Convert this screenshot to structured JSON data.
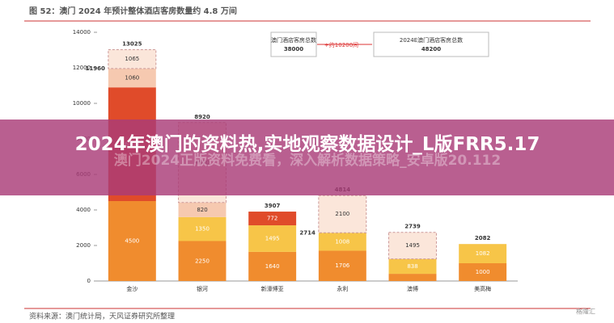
{
  "chart_data": {
    "type": "stacked_bar",
    "title": "图 52：澳门 2024 年预计整体酒店客房数量约 4.8 万间",
    "source": "资料来源：澳门统计局，天风证券研究所整理",
    "watermark": "格隆汇",
    "ylim": [
      0,
      14000
    ],
    "yticks": [
      0,
      2000,
      4000,
      6000,
      8000,
      10000,
      12000,
      14000
    ],
    "boxes": [
      {
        "label": "澳门酒店客房总数",
        "value": 38000
      },
      {
        "label": "+约10200间"
      },
      {
        "label": "2024E澳门酒店客房总数",
        "value": 48200
      }
    ],
    "bars": [
      {
        "category": "金沙",
        "sub_total": 11960,
        "total": 13025,
        "segments": [
          {
            "value": 4500,
            "color": "#f08c2e"
          },
          {
            "value": 6400,
            "color": "#e04b2a"
          },
          {
            "value": 1060,
            "color": "#f6c9b0"
          },
          {
            "value": 1065,
            "color": "#fbe6da",
            "dashed": true
          }
        ]
      },
      {
        "category": "银河",
        "total": 8920,
        "segments": [
          {
            "value": 2250,
            "color": "#f08c2e"
          },
          {
            "value": 1350,
            "color": "#f7c548"
          },
          {
            "value": 820,
            "color": "#f6c9b0"
          },
          {
            "value": 4500,
            "color": "#fbe6da",
            "dashed": true
          }
        ]
      },
      {
        "category": "新濠博亚",
        "total": 3907,
        "segments": [
          {
            "value": 1640,
            "color": "#f08c2e"
          },
          {
            "value": 1495,
            "color": "#f7c548"
          },
          {
            "value": 772,
            "color": "#e04b2a"
          }
        ]
      },
      {
        "category": "永利",
        "sub_total": 2714,
        "total": 4814,
        "segments": [
          {
            "value": 1706,
            "color": "#f08c2e"
          },
          {
            "value": 1008,
            "color": "#f7c548"
          },
          {
            "value": 2100,
            "color": "#fbe6da",
            "dashed": true
          }
        ]
      },
      {
        "category": "澳博",
        "total": 2739,
        "segments": [
          {
            "value": 406,
            "color": "#f08c2e"
          },
          {
            "value": 838,
            "color": "#f7c548"
          },
          {
            "value": 1495,
            "color": "#fbe6da",
            "dashed": true
          }
        ]
      },
      {
        "category": "美高梅",
        "total": 2082,
        "segments": [
          {
            "value": 1000,
            "color": "#f08c2e"
          },
          {
            "value": 1082,
            "color": "#f7c548"
          }
        ]
      }
    ]
  },
  "banner": {
    "title": "2024年澳门的资料热,实地观察数据设计_L版FRR5.17",
    "subtitle": "澳门2024正版资料免费看，深入解析数据策略_安卓版20.112"
  }
}
